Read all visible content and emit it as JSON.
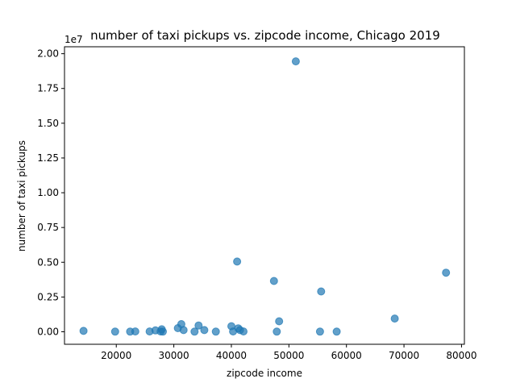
{
  "chart_data": {
    "type": "scatter",
    "title": "number of taxi pickups vs. zipcode income, Chicago 2019",
    "xlabel": "zipcode income",
    "ylabel": "number of taxi pickups",
    "y_offset_label": "1e7",
    "xlim": [
      11000,
      80500
    ],
    "ylim": [
      -0.09,
      2.05
    ],
    "y_scale_factor": 10000000,
    "xticks": [
      20000,
      30000,
      40000,
      50000,
      60000,
      70000,
      80000
    ],
    "xtick_labels": [
      "20000",
      "30000",
      "40000",
      "50000",
      "60000",
      "70000",
      "80000"
    ],
    "yticks": [
      0.0,
      0.25,
      0.5,
      0.75,
      1.0,
      1.25,
      1.5,
      1.75,
      2.0
    ],
    "ytick_labels": [
      "0.00",
      "0.25",
      "0.50",
      "0.75",
      "1.00",
      "1.25",
      "1.50",
      "1.75",
      "2.00"
    ],
    "grid": false,
    "marker_color": "#1f77b4",
    "marker_alpha": 0.7,
    "points": [
      {
        "x": 14300,
        "y": 0.006
      },
      {
        "x": 19800,
        "y": 0.001
      },
      {
        "x": 22400,
        "y": 0.001
      },
      {
        "x": 23300,
        "y": 0.002
      },
      {
        "x": 25800,
        "y": 0.002
      },
      {
        "x": 26800,
        "y": 0.01
      },
      {
        "x": 27700,
        "y": 0.002
      },
      {
        "x": 27900,
        "y": 0.018
      },
      {
        "x": 28100,
        "y": 0.001
      },
      {
        "x": 30700,
        "y": 0.026
      },
      {
        "x": 31300,
        "y": 0.055
      },
      {
        "x": 31700,
        "y": 0.012
      },
      {
        "x": 33600,
        "y": 0.001
      },
      {
        "x": 34300,
        "y": 0.045
      },
      {
        "x": 35300,
        "y": 0.012
      },
      {
        "x": 37300,
        "y": 0.001
      },
      {
        "x": 40000,
        "y": 0.04
      },
      {
        "x": 40300,
        "y": 0.002
      },
      {
        "x": 41000,
        "y": 0.505
      },
      {
        "x": 41200,
        "y": 0.025
      },
      {
        "x": 41500,
        "y": 0.012
      },
      {
        "x": 42100,
        "y": 0.002
      },
      {
        "x": 47400,
        "y": 0.365
      },
      {
        "x": 47900,
        "y": 0.001
      },
      {
        "x": 48300,
        "y": 0.075
      },
      {
        "x": 51200,
        "y": 1.945
      },
      {
        "x": 55400,
        "y": 0.001
      },
      {
        "x": 55600,
        "y": 0.29
      },
      {
        "x": 58300,
        "y": 0.001
      },
      {
        "x": 68400,
        "y": 0.095
      },
      {
        "x": 77300,
        "y": 0.425
      }
    ]
  }
}
